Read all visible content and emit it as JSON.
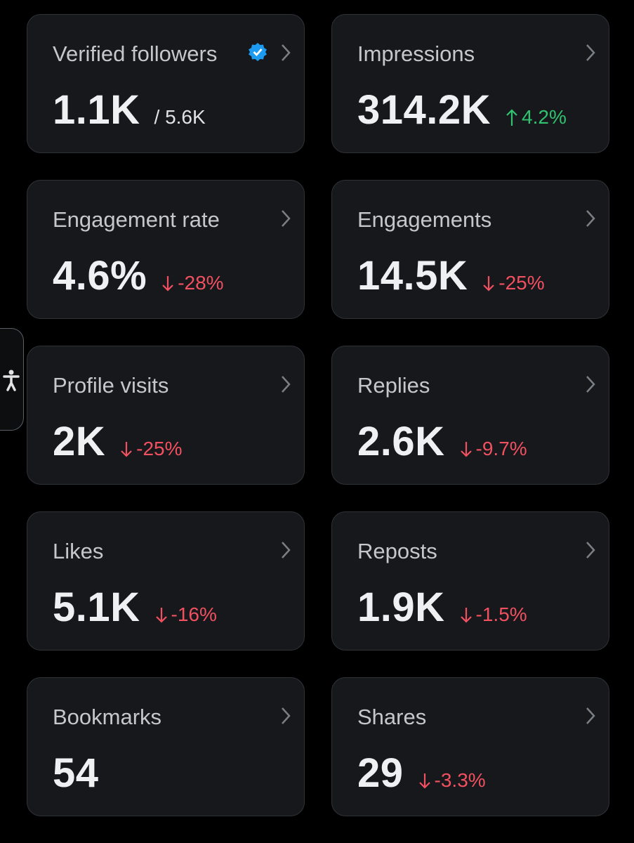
{
  "cards": [
    {
      "label": "Verified followers",
      "value": "1.1K",
      "secondary": "/ 5.6K",
      "verified": true
    },
    {
      "label": "Impressions",
      "value": "314.2K",
      "change": "4.2%",
      "trend": "up"
    },
    {
      "label": "Engagement rate",
      "value": "4.6%",
      "change": "-28%",
      "trend": "down"
    },
    {
      "label": "Engagements",
      "value": "14.5K",
      "change": "-25%",
      "trend": "down"
    },
    {
      "label": "Profile visits",
      "value": "2K",
      "change": "-25%",
      "trend": "down"
    },
    {
      "label": "Replies",
      "value": "2.6K",
      "change": "-9.7%",
      "trend": "down"
    },
    {
      "label": "Likes",
      "value": "5.1K",
      "change": "-16%",
      "trend": "down"
    },
    {
      "label": "Reposts",
      "value": "1.9K",
      "change": "-1.5%",
      "trend": "down"
    },
    {
      "label": "Bookmarks",
      "value": "54"
    },
    {
      "label": "Shares",
      "value": "29",
      "change": "-3.3%",
      "trend": "down"
    }
  ]
}
